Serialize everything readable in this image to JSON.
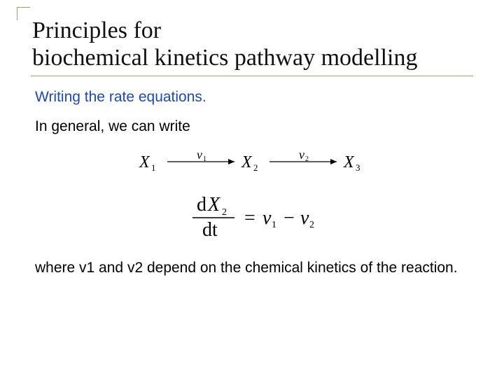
{
  "title_line1": "Principles for",
  "title_line2": "biochemical kinetics pathway modelling",
  "subtitle": "Writing the rate equations.",
  "lead_text": "In general, we can write",
  "reaction": {
    "nodes": [
      "X",
      "X",
      "X"
    ],
    "node_subs": [
      "1",
      "2",
      "3"
    ],
    "arrow_labels": [
      "v",
      "v"
    ],
    "arrow_label_subs": [
      "1",
      "2"
    ],
    "font_family": "Times New Roman",
    "node_fontsize": 24,
    "sub_fontsize": 13,
    "label_fontsize": 18,
    "label_sub_fontsize": 10,
    "color": "#000000",
    "arrow_len": 96,
    "gap": 10
  },
  "equation": {
    "numerator_d": "d",
    "numerator_var": "X",
    "numerator_sub": "2",
    "denominator": "dt",
    "rhs_eq": "=",
    "rhs_v1": "v",
    "rhs_v1_sub": "1",
    "rhs_minus": "−",
    "rhs_v2": "v",
    "rhs_v2_sub": "2",
    "font_family": "Times New Roman",
    "fontsize": 28,
    "sub_fontsize": 14,
    "color": "#000000"
  },
  "closing_pre": "where ",
  "closing_v1": "v",
  "closing_v1_sub": "1",
  "closing_mid": " and ",
  "closing_v2": "v",
  "closing_v2_sub": "2",
  "closing_post": " depend on the chemical kinetics of the reaction.",
  "colors": {
    "rule": "#a6a66b",
    "subtitle": "#1848c8",
    "text": "#000000",
    "background": "#ffffff"
  }
}
